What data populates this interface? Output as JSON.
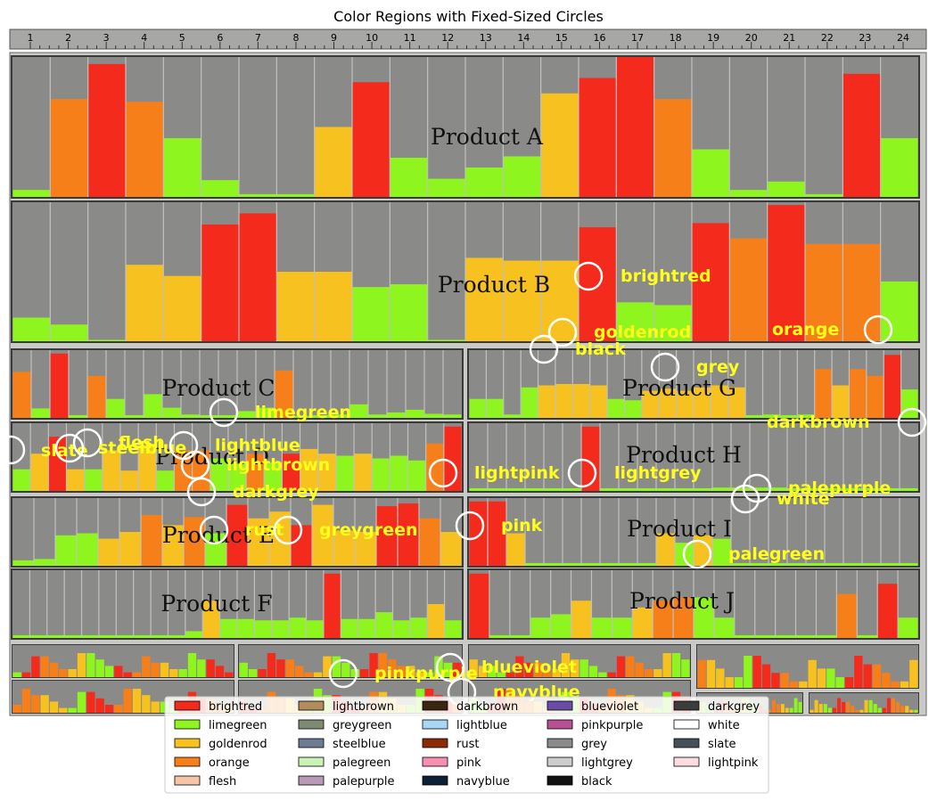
{
  "chart_data": {
    "type": "bar",
    "title": "Color Regions with Fixed-Sized Circles",
    "xlabel": "",
    "ylabel": "",
    "ruler_ticks": [
      "1",
      "2",
      "3",
      "4",
      "5",
      "6",
      "7",
      "8",
      "9",
      "10",
      "11",
      "12",
      "13",
      "14",
      "15",
      "16",
      "17",
      "18",
      "19",
      "20",
      "21",
      "22",
      "23",
      "24"
    ],
    "panels": [
      {
        "label": "Product A",
        "values": [
          5,
          70,
          95,
          68,
          42,
          12,
          2,
          2,
          50,
          82,
          28,
          13,
          21,
          29,
          74,
          85,
          100,
          70,
          34,
          5,
          11,
          2,
          88,
          42
        ],
        "colors": [
          "limegreen",
          "orange",
          "brightred",
          "orange",
          "limegreen",
          "limegreen",
          "limegreen",
          "limegreen",
          "goldenrod",
          "brightred",
          "limegreen",
          "limegreen",
          "limegreen",
          "limegreen",
          "goldenrod",
          "brightred",
          "brightred",
          "orange",
          "limegreen",
          "limegreen",
          "limegreen",
          "limegreen",
          "brightred",
          "limegreen"
        ]
      },
      {
        "label": "Product B",
        "values": [
          17,
          12,
          1,
          55,
          47,
          84,
          92,
          50,
          50,
          39,
          41,
          1,
          60,
          58,
          58,
          82,
          28,
          26,
          85,
          74,
          98,
          70,
          70,
          43
        ],
        "colors": [
          "limegreen",
          "limegreen",
          "limegreen",
          "goldenrod",
          "goldenrod",
          "brightred",
          "brightred",
          "goldenrod",
          "goldenrod",
          "limegreen",
          "limegreen",
          "limegreen",
          "goldenrod",
          "goldenrod",
          "goldenrod",
          "brightred",
          "limegreen",
          "limegreen",
          "brightred",
          "orange",
          "brightred",
          "orange",
          "orange",
          "limegreen"
        ]
      },
      {
        "label": "Product C",
        "values": [
          68,
          14,
          95,
          4,
          62,
          28,
          4,
          35,
          15,
          5,
          4,
          4,
          10,
          15,
          70,
          3,
          4,
          5,
          20,
          5,
          8,
          12,
          6,
          5
        ],
        "colors": [
          "orange",
          "limegreen",
          "brightred",
          "limegreen",
          "orange",
          "limegreen",
          "limegreen",
          "limegreen",
          "limegreen",
          "limegreen",
          "limegreen",
          "limegreen",
          "limegreen",
          "limegreen",
          "orange",
          "limegreen",
          "limegreen",
          "limegreen",
          "limegreen",
          "limegreen",
          "limegreen",
          "limegreen",
          "limegreen",
          "limegreen"
        ]
      },
      {
        "label": "Product G",
        "values": [
          28,
          28,
          5,
          45,
          48,
          50,
          50,
          48,
          28,
          26,
          40,
          43,
          40,
          45,
          48,
          45,
          4,
          5,
          4,
          5,
          72,
          48,
          72,
          62,
          93,
          42
        ],
        "colors": [
          "limegreen",
          "limegreen",
          "limegreen",
          "limegreen",
          "goldenrod",
          "goldenrod",
          "goldenrod",
          "goldenrod",
          "limegreen",
          "limegreen",
          "goldenrod",
          "goldenrod",
          "goldenrod",
          "goldenrod",
          "goldenrod",
          "goldenrod",
          "limegreen",
          "limegreen",
          "limegreen",
          "limegreen",
          "orange",
          "goldenrod",
          "orange",
          "orange",
          "brightred",
          "limegreen"
        ]
      },
      {
        "label": "Product D",
        "values": [
          32,
          55,
          80,
          32,
          32,
          60,
          30,
          68,
          30,
          60,
          60,
          48,
          40,
          55,
          42,
          55,
          62,
          55,
          52,
          55,
          48,
          52,
          45,
          70,
          95
        ],
        "colors": [
          "limegreen",
          "goldenrod",
          "brightred",
          "goldenrod",
          "limegreen",
          "goldenrod",
          "goldenrod",
          "goldenrod",
          "limegreen",
          "orange",
          "orange",
          "limegreen",
          "limegreen",
          "orange",
          "limegreen",
          "brightred",
          "goldenrod",
          "goldenrod",
          "limegreen",
          "goldenrod",
          "limegreen",
          "limegreen",
          "limegreen",
          "orange",
          "brightred"
        ]
      },
      {
        "label": "Product H",
        "values": [
          4,
          4,
          4,
          4,
          4,
          4,
          95,
          4,
          4,
          4,
          4,
          4,
          4,
          5,
          5,
          5,
          5,
          4,
          4,
          4,
          4,
          4,
          4,
          4
        ],
        "colors": [
          "limegreen",
          "limegreen",
          "limegreen",
          "limegreen",
          "limegreen",
          "limegreen",
          "brightred",
          "limegreen",
          "limegreen",
          "limegreen",
          "limegreen",
          "limegreen",
          "limegreen",
          "limegreen",
          "limegreen",
          "limegreen",
          "limegreen",
          "limegreen",
          "limegreen",
          "limegreen",
          "limegreen",
          "limegreen",
          "limegreen",
          "limegreen"
        ]
      },
      {
        "label": "Product E",
        "values": [
          8,
          10,
          45,
          48,
          40,
          50,
          75,
          60,
          72,
          48,
          90,
          70,
          80,
          60,
          90,
          52,
          50,
          88,
          92,
          70,
          50
        ],
        "colors": [
          "limegreen",
          "limegreen",
          "limegreen",
          "limegreen",
          "goldenrod",
          "goldenrod",
          "orange",
          "goldenrod",
          "orange",
          "limegreen",
          "brightred",
          "goldenrod",
          "goldenrod",
          "brightred",
          "goldenrod",
          "goldenrod",
          "goldenrod",
          "brightred",
          "brightred",
          "orange",
          "goldenrod"
        ]
      },
      {
        "label": "Product I",
        "values": [
          95,
          95,
          48,
          4,
          4,
          4,
          4,
          4,
          4,
          4,
          48,
          34,
          45,
          40,
          4,
          4,
          4,
          4,
          4,
          4,
          4,
          4,
          4,
          4
        ],
        "colors": [
          "brightred",
          "brightred",
          "goldenrod",
          "limegreen",
          "limegreen",
          "limegreen",
          "limegreen",
          "limegreen",
          "limegreen",
          "limegreen",
          "goldenrod",
          "limegreen",
          "goldenrod",
          "limegreen",
          "limegreen",
          "limegreen",
          "limegreen",
          "limegreen",
          "limegreen",
          "limegreen",
          "limegreen",
          "limegreen",
          "limegreen",
          "limegreen"
        ]
      },
      {
        "label": "Product F",
        "values": [
          4,
          4,
          4,
          4,
          4,
          4,
          4,
          4,
          4,
          4,
          10,
          55,
          28,
          28,
          26,
          26,
          30,
          26,
          95,
          28,
          28,
          38,
          26,
          30,
          50,
          26
        ],
        "colors": [
          "limegreen",
          "limegreen",
          "limegreen",
          "limegreen",
          "limegreen",
          "limegreen",
          "limegreen",
          "limegreen",
          "limegreen",
          "limegreen",
          "limegreen",
          "goldenrod",
          "limegreen",
          "limegreen",
          "limegreen",
          "limegreen",
          "limegreen",
          "limegreen",
          "brightred",
          "limegreen",
          "limegreen",
          "limegreen",
          "limegreen",
          "limegreen",
          "goldenrod",
          "limegreen"
        ]
      },
      {
        "label": "Product J",
        "values": [
          95,
          4,
          4,
          30,
          35,
          55,
          30,
          30,
          45,
          55,
          60,
          60,
          30,
          4,
          4,
          4,
          4,
          4,
          65,
          4,
          80,
          30
        ],
        "colors": [
          "brightred",
          "limegreen",
          "limegreen",
          "limegreen",
          "limegreen",
          "goldenrod",
          "limegreen",
          "limegreen",
          "goldenrod",
          "orange",
          "orange",
          "limegreen",
          "limegreen",
          "limegreen",
          "limegreen",
          "limegreen",
          "limegreen",
          "limegreen",
          "orange",
          "limegreen",
          "brightred",
          "limegreen"
        ]
      }
    ],
    "annotations": [
      {
        "name": "brightred",
        "label": "brightred"
      },
      {
        "name": "goldenrod",
        "label": "goldenrod"
      },
      {
        "name": "black",
        "label": "black"
      },
      {
        "name": "orange",
        "label": "orange"
      },
      {
        "name": "grey",
        "label": "grey"
      },
      {
        "name": "limegreen",
        "label": "limegreen"
      },
      {
        "name": "darkbrown",
        "label": "darkbrown"
      },
      {
        "name": "slate",
        "label": "slate"
      },
      {
        "name": "flesh",
        "label": "flesh"
      },
      {
        "name": "steelblue",
        "label": "steelblue"
      },
      {
        "name": "lightblue",
        "label": "lightblue"
      },
      {
        "name": "lightbrown",
        "label": "lightbrown"
      },
      {
        "name": "darkgrey",
        "label": "darkgrey"
      },
      {
        "name": "lightpink",
        "label": "lightpink"
      },
      {
        "name": "lightgrey",
        "label": "lightgrey"
      },
      {
        "name": "palepurple",
        "label": "palepurple"
      },
      {
        "name": "white",
        "label": "white"
      },
      {
        "name": "rust",
        "label": "rust"
      },
      {
        "name": "greygreen",
        "label": "greygreen"
      },
      {
        "name": "pink",
        "label": "pink"
      },
      {
        "name": "palegreen",
        "label": "palegreen"
      },
      {
        "name": "pinkpurple",
        "label": "pinkpurple"
      },
      {
        "name": "blueviolet",
        "label": "blueviolet"
      },
      {
        "name": "navyblue",
        "label": "navyblue"
      }
    ],
    "legend": {
      "placement": "bottom-center",
      "entries": [
        {
          "label": "brightred",
          "color": "#f42a1c"
        },
        {
          "label": "limegreen",
          "color": "#8ef51e"
        },
        {
          "label": "goldenrod",
          "color": "#f7c120"
        },
        {
          "label": "orange",
          "color": "#f77f1a"
        },
        {
          "label": "flesh",
          "color": "#f8c4a6"
        },
        {
          "label": "lightbrown",
          "color": "#b38b5e"
        },
        {
          "label": "greygreen",
          "color": "#7e8b72"
        },
        {
          "label": "steelblue",
          "color": "#6c7a94"
        },
        {
          "label": "palegreen",
          "color": "#c8f4b6"
        },
        {
          "label": "palepurple",
          "color": "#b89ab8"
        },
        {
          "label": "darkbrown",
          "color": "#3a2612"
        },
        {
          "label": "lightblue",
          "color": "#a9d6f4"
        },
        {
          "label": "rust",
          "color": "#8c2a08"
        },
        {
          "label": "pink",
          "color": "#f590b0"
        },
        {
          "label": "navyblue",
          "color": "#0e2036"
        },
        {
          "label": "blueviolet",
          "color": "#6a4ca8"
        },
        {
          "label": "pinkpurple",
          "color": "#b85094"
        },
        {
          "label": "grey",
          "color": "#8a8a8a"
        },
        {
          "label": "lightgrey",
          "color": "#cccccc"
        },
        {
          "label": "black",
          "color": "#111111"
        },
        {
          "label": "darkgrey",
          "color": "#3c3c3c"
        },
        {
          "label": "white",
          "color": "#ffffff"
        },
        {
          "label": "slate",
          "color": "#46505a"
        },
        {
          "label": "lightpink",
          "color": "#fcdce0"
        }
      ]
    }
  },
  "colors": {
    "brightred": "#f42a1c",
    "limegreen": "#8ef51e",
    "goldenrod": "#f7c120",
    "orange": "#f77f1a",
    "bar_bg": "#8a8b88",
    "annotation_text": "#ffff1a",
    "circle_stroke": "#ffffff"
  }
}
